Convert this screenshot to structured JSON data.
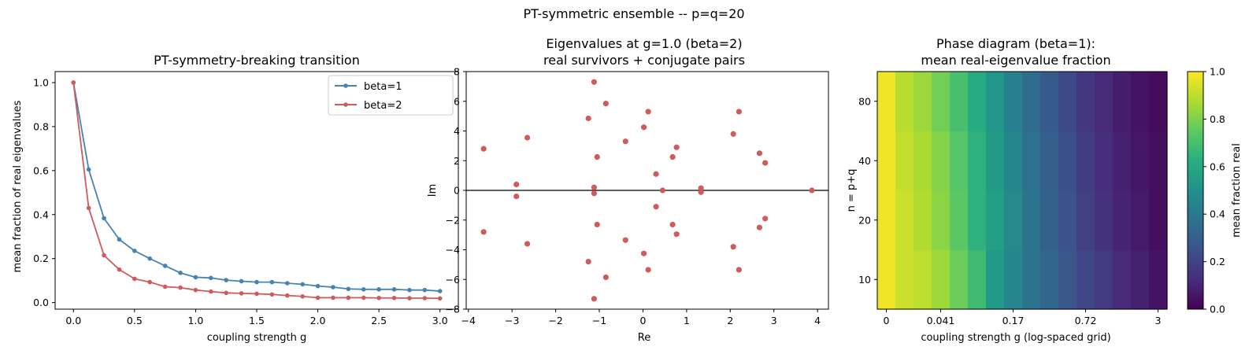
{
  "suptitle": "PT-symmetric ensemble -- p=q=20",
  "chart_data": [
    {
      "type": "line",
      "title": "PT-symmetry-breaking transition",
      "xlabel": "coupling strength g",
      "ylabel": "mean fraction of real eigenvalues",
      "xlim": [
        -0.15,
        3.15
      ],
      "ylim": [
        -0.03,
        1.05
      ],
      "xticks": [
        0.0,
        0.5,
        1.0,
        1.5,
        2.0,
        2.5,
        3.0
      ],
      "xtick_labels": [
        "0.0",
        "0.5",
        "1.0",
        "1.5",
        "2.0",
        "2.5",
        "3.0"
      ],
      "yticks": [
        0.0,
        0.2,
        0.4,
        0.6,
        0.8,
        1.0
      ],
      "ytick_labels": [
        "0.0",
        "0.2",
        "0.4",
        "0.6",
        "0.8",
        "1.0"
      ],
      "grid": false,
      "legend": "top-right",
      "x": [
        0,
        0.125,
        0.25,
        0.375,
        0.5,
        0.625,
        0.75,
        0.875,
        1.0,
        1.125,
        1.25,
        1.375,
        1.5,
        1.625,
        1.75,
        1.875,
        2.0,
        2.125,
        2.25,
        2.375,
        2.5,
        2.625,
        2.75,
        2.875,
        3.0
      ],
      "series": [
        {
          "name": "beta=1",
          "color": "#4682b4",
          "values": [
            1.0,
            0.605,
            0.383,
            0.287,
            0.235,
            0.2,
            0.167,
            0.135,
            0.115,
            0.112,
            0.102,
            0.097,
            0.093,
            0.093,
            0.088,
            0.083,
            0.075,
            0.07,
            0.062,
            0.06,
            0.06,
            0.06,
            0.057,
            0.057,
            0.052
          ]
        },
        {
          "name": "beta=2",
          "color": "#cd5c5c",
          "values": [
            1.0,
            0.43,
            0.215,
            0.15,
            0.108,
            0.093,
            0.072,
            0.068,
            0.057,
            0.05,
            0.044,
            0.042,
            0.04,
            0.037,
            0.032,
            0.028,
            0.022,
            0.022,
            0.022,
            0.022,
            0.021,
            0.021,
            0.02,
            0.02,
            0.019
          ]
        }
      ]
    },
    {
      "type": "scatter",
      "title": "Eigenvalues at g=1.0 (beta=2)",
      "subtitle": "real survivors + conjugate pairs",
      "xlabel": "Re",
      "ylabel": "Im",
      "xlim": [
        -4.05,
        4.25
      ],
      "ylim": [
        -8,
        8
      ],
      "xticks": [
        -4,
        -3,
        -2,
        -1,
        0,
        1,
        2,
        3,
        4
      ],
      "xtick_labels": [
        "−4",
        "−3",
        "−2",
        "−1",
        "0",
        "1",
        "2",
        "3",
        "4"
      ],
      "yticks": [
        -8,
        -6,
        -4,
        -2,
        0,
        2,
        4,
        6,
        8
      ],
      "ytick_labels": [
        "−8",
        "−6",
        "−4",
        "−2",
        "0",
        "2",
        "4",
        "6",
        "8"
      ],
      "hline": 0,
      "color": "#cd5c5c",
      "points": [
        [
          -3.65,
          2.8
        ],
        [
          -3.65,
          -2.8
        ],
        [
          -2.9,
          0.4
        ],
        [
          -2.9,
          -0.4
        ],
        [
          -2.65,
          3.55
        ],
        [
          -2.65,
          -3.6
        ],
        [
          -1.25,
          4.85
        ],
        [
          -1.25,
          -4.8
        ],
        [
          -1.12,
          7.3
        ],
        [
          -1.12,
          -7.3
        ],
        [
          -1.12,
          0.2
        ],
        [
          -1.12,
          -0.2
        ],
        [
          -1.05,
          2.25
        ],
        [
          -1.05,
          -2.3
        ],
        [
          -0.85,
          5.85
        ],
        [
          -0.85,
          -5.85
        ],
        [
          -0.4,
          3.3
        ],
        [
          -0.4,
          -3.35
        ],
        [
          0.02,
          4.25
        ],
        [
          0.02,
          -4.25
        ],
        [
          0.12,
          5.3
        ],
        [
          0.12,
          -5.35
        ],
        [
          0.3,
          1.1
        ],
        [
          0.3,
          -1.1
        ],
        [
          0.45,
          0.0
        ],
        [
          0.68,
          2.25
        ],
        [
          0.68,
          -2.3
        ],
        [
          0.77,
          2.9
        ],
        [
          0.77,
          -2.95
        ],
        [
          1.33,
          0.15
        ],
        [
          1.33,
          -0.12
        ],
        [
          2.07,
          3.8
        ],
        [
          2.07,
          -3.8
        ],
        [
          2.2,
          5.3
        ],
        [
          2.2,
          -5.35
        ],
        [
          2.67,
          2.5
        ],
        [
          2.67,
          -2.5
        ],
        [
          2.8,
          1.85
        ],
        [
          2.8,
          -1.9
        ],
        [
          3.87,
          0.0
        ]
      ]
    },
    {
      "type": "heatmap",
      "title": "Phase diagram (beta=1):",
      "subtitle": "mean real-eigenvalue fraction",
      "xlabel": "coupling strength g (log-spaced grid)",
      "ylabel": "n = p+q",
      "xtick_labels": [
        "0",
        "0.041",
        "0.17",
        "0.72",
        "3"
      ],
      "xtick_columns": [
        0,
        3,
        7,
        11,
        15
      ],
      "ytick_labels": [
        "10",
        "20",
        "40",
        "80"
      ],
      "colorbar_label": "mean fraction real",
      "colorbar_ticks": [
        "0.0",
        "0.2",
        "0.4",
        "0.6",
        "0.8",
        "1.0"
      ],
      "colormap": "viridis",
      "rows_bottom_to_top": [
        [
          0.98,
          0.92,
          0.9,
          0.85,
          0.77,
          0.68,
          0.54,
          0.46,
          0.38,
          0.33,
          0.27,
          0.21,
          0.17,
          0.12,
          0.09,
          0.05
        ],
        [
          0.98,
          0.92,
          0.88,
          0.82,
          0.74,
          0.64,
          0.56,
          0.47,
          0.38,
          0.31,
          0.25,
          0.19,
          0.14,
          0.1,
          0.07,
          0.04
        ],
        [
          0.98,
          0.91,
          0.87,
          0.81,
          0.73,
          0.64,
          0.54,
          0.45,
          0.37,
          0.3,
          0.24,
          0.18,
          0.13,
          0.09,
          0.06,
          0.04
        ],
        [
          0.98,
          0.89,
          0.85,
          0.78,
          0.7,
          0.61,
          0.52,
          0.43,
          0.35,
          0.28,
          0.22,
          0.16,
          0.12,
          0.08,
          0.05,
          0.03
        ]
      ]
    }
  ]
}
